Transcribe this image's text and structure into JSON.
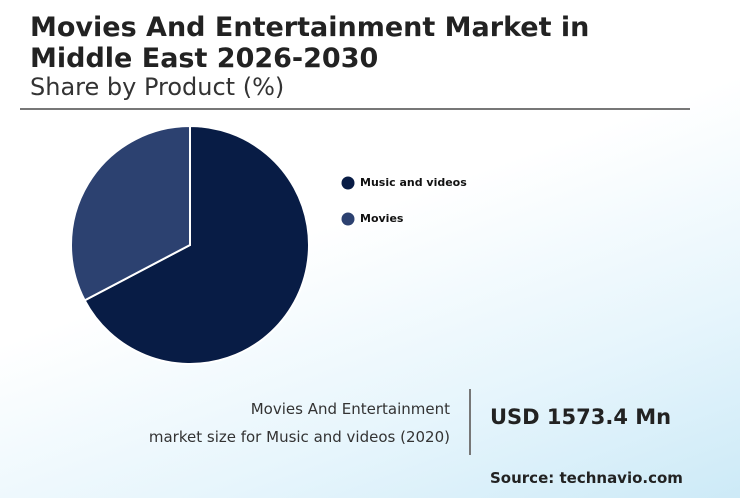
{
  "chart_data": {
    "type": "pie",
    "title": "Movies And Entertainment Market in Middle East 2026-2030",
    "subtitle": "Share by Product (%)",
    "categories": [
      "Music and videos",
      "Movies"
    ],
    "values": [
      67.3,
      32.7
    ],
    "colors": [
      "#081c45",
      "#2c4170"
    ]
  },
  "callout": {
    "label_lines": [
      "Movies And Entertainment",
      "market size for Music and videos (2020)"
    ],
    "value": "USD 1573.4 Mn"
  },
  "source": "Source: technavio.com"
}
